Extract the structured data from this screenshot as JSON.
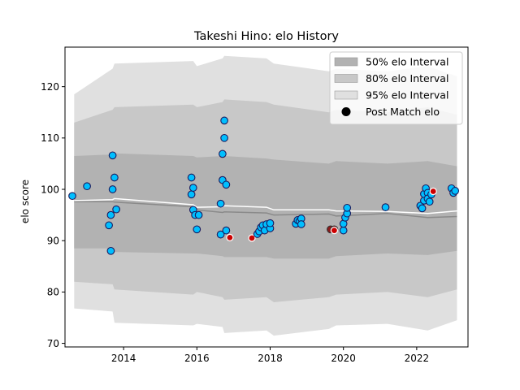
{
  "chart_data": {
    "type": "scatter",
    "title": "Takeshi Hino: elo History",
    "xlabel": "",
    "ylabel": "elo score",
    "xlim": [
      2012.4,
      2023.4
    ],
    "ylim": [
      69.3,
      127.7
    ],
    "xticks": [
      2014,
      2016,
      2018,
      2020,
      2022
    ],
    "yticks": [
      70,
      80,
      90,
      100,
      110,
      120
    ],
    "grid": false,
    "legend_position": "top-right",
    "legend": [
      {
        "label": "50% elo Interval",
        "kind": "band",
        "color": "#b2b2b2"
      },
      {
        "label": "80% elo Interval",
        "kind": "band",
        "color": "#c8c8c8"
      },
      {
        "label": "95% elo Interval",
        "kind": "band",
        "color": "#e0e0e0"
      },
      {
        "label": "Post Match elo",
        "kind": "marker",
        "color": "#000000"
      }
    ],
    "colors": {
      "band50": "#b2b2b2",
      "band80": "#c8c8c8",
      "band95": "#e0e0e0",
      "mean_line": "#ffffff",
      "median_line": "#8a8a8a",
      "point_fill": "#00bfff",
      "point_edge": "#1a1a5e",
      "loss_fill": "#cc0000",
      "loss_edge": "#ffffff",
      "dark_fill": "#8b1a1a"
    },
    "bands": {
      "x": [
        2012.65,
        2013.7,
        2013.75,
        2015.9,
        2016.0,
        2016.7,
        2016.75,
        2017.9,
        2018.1,
        2019.6,
        2019.8,
        2021.2,
        2022.3,
        2023.1
      ],
      "band95_lo": [
        76.8,
        76.2,
        74.0,
        73.5,
        73.8,
        73.2,
        72.0,
        72.5,
        71.5,
        72.8,
        73.5,
        73.8,
        72.5,
        74.5
      ],
      "band95_hi": [
        118.5,
        123.5,
        124.5,
        125.0,
        124.0,
        125.5,
        126.0,
        125.5,
        124.5,
        123.0,
        123.5,
        123.0,
        124.0,
        122.0
      ],
      "band80_lo": [
        82.0,
        81.5,
        80.5,
        79.5,
        80.0,
        79.0,
        78.5,
        79.0,
        78.0,
        79.0,
        79.5,
        80.0,
        79.0,
        80.5
      ],
      "band80_hi": [
        113.0,
        115.5,
        116.0,
        116.5,
        116.0,
        117.0,
        117.5,
        117.0,
        116.5,
        115.0,
        115.5,
        115.0,
        116.0,
        114.5
      ],
      "band50_lo": [
        88.5,
        88.5,
        87.8,
        87.5,
        87.5,
        87.0,
        86.8,
        86.8,
        86.5,
        86.5,
        87.0,
        87.5,
        87.2,
        88.0
      ],
      "band50_hi": [
        106.5,
        106.8,
        107.0,
        106.5,
        106.2,
        106.5,
        106.5,
        106.0,
        105.8,
        105.0,
        105.5,
        105.0,
        105.5,
        104.5
      ],
      "mean": [
        97.8,
        98.0,
        98.2,
        97.0,
        96.5,
        96.6,
        96.8,
        96.5,
        96.0,
        96.0,
        95.8,
        95.7,
        95.3,
        95.8
      ],
      "median": [
        97.6,
        97.6,
        97.5,
        96.6,
        96.0,
        95.5,
        95.6,
        95.4,
        95.0,
        95.2,
        94.8,
        95.3,
        94.5,
        94.7
      ]
    },
    "points": [
      {
        "x": 2012.6,
        "y": 98.7,
        "kind": "normal"
      },
      {
        "x": 2013.0,
        "y": 100.6,
        "kind": "normal"
      },
      {
        "x": 2013.6,
        "y": 93.0,
        "kind": "normal"
      },
      {
        "x": 2013.65,
        "y": 95.0,
        "kind": "normal"
      },
      {
        "x": 2013.65,
        "y": 88.0,
        "kind": "normal"
      },
      {
        "x": 2013.7,
        "y": 100.0,
        "kind": "normal"
      },
      {
        "x": 2013.7,
        "y": 106.6,
        "kind": "normal"
      },
      {
        "x": 2013.75,
        "y": 102.3,
        "kind": "normal"
      },
      {
        "x": 2013.8,
        "y": 96.1,
        "kind": "normal"
      },
      {
        "x": 2015.85,
        "y": 102.3,
        "kind": "normal"
      },
      {
        "x": 2015.85,
        "y": 99.0,
        "kind": "normal"
      },
      {
        "x": 2015.9,
        "y": 100.3,
        "kind": "normal"
      },
      {
        "x": 2015.9,
        "y": 96.0,
        "kind": "normal"
      },
      {
        "x": 2015.95,
        "y": 95.0,
        "kind": "normal"
      },
      {
        "x": 2016.0,
        "y": 92.2,
        "kind": "normal"
      },
      {
        "x": 2016.05,
        "y": 95.0,
        "kind": "normal"
      },
      {
        "x": 2016.65,
        "y": 97.2,
        "kind": "normal"
      },
      {
        "x": 2016.65,
        "y": 91.2,
        "kind": "normal"
      },
      {
        "x": 2016.7,
        "y": 106.9,
        "kind": "normal"
      },
      {
        "x": 2016.7,
        "y": 101.8,
        "kind": "normal"
      },
      {
        "x": 2016.75,
        "y": 113.4,
        "kind": "normal"
      },
      {
        "x": 2016.75,
        "y": 110.0,
        "kind": "normal"
      },
      {
        "x": 2016.8,
        "y": 100.9,
        "kind": "normal"
      },
      {
        "x": 2016.8,
        "y": 92.0,
        "kind": "normal"
      },
      {
        "x": 2016.9,
        "y": 90.6,
        "kind": "loss"
      },
      {
        "x": 2017.5,
        "y": 90.5,
        "kind": "loss"
      },
      {
        "x": 2017.65,
        "y": 91.3,
        "kind": "normal"
      },
      {
        "x": 2017.7,
        "y": 91.8,
        "kind": "normal"
      },
      {
        "x": 2017.75,
        "y": 92.6,
        "kind": "normal"
      },
      {
        "x": 2017.8,
        "y": 93.0,
        "kind": "normal"
      },
      {
        "x": 2017.85,
        "y": 92.0,
        "kind": "normal"
      },
      {
        "x": 2017.9,
        "y": 93.2,
        "kind": "normal"
      },
      {
        "x": 2018.0,
        "y": 92.4,
        "kind": "normal"
      },
      {
        "x": 2018.0,
        "y": 93.4,
        "kind": "normal"
      },
      {
        "x": 2018.7,
        "y": 93.3,
        "kind": "normal"
      },
      {
        "x": 2018.75,
        "y": 94.0,
        "kind": "normal"
      },
      {
        "x": 2018.8,
        "y": 93.8,
        "kind": "normal"
      },
      {
        "x": 2018.85,
        "y": 94.3,
        "kind": "normal"
      },
      {
        "x": 2018.85,
        "y": 93.2,
        "kind": "normal"
      },
      {
        "x": 2019.65,
        "y": 92.2,
        "kind": "dark"
      },
      {
        "x": 2019.75,
        "y": 92.2,
        "kind": "dark"
      },
      {
        "x": 2019.75,
        "y": 92.0,
        "kind": "loss"
      },
      {
        "x": 2020.0,
        "y": 92.0,
        "kind": "normal"
      },
      {
        "x": 2020.0,
        "y": 93.3,
        "kind": "normal"
      },
      {
        "x": 2020.05,
        "y": 94.5,
        "kind": "normal"
      },
      {
        "x": 2020.1,
        "y": 95.3,
        "kind": "normal"
      },
      {
        "x": 2020.1,
        "y": 96.4,
        "kind": "normal"
      },
      {
        "x": 2021.15,
        "y": 96.5,
        "kind": "normal"
      },
      {
        "x": 2022.1,
        "y": 96.8,
        "kind": "normal"
      },
      {
        "x": 2022.15,
        "y": 96.3,
        "kind": "normal"
      },
      {
        "x": 2022.2,
        "y": 97.8,
        "kind": "normal"
      },
      {
        "x": 2022.2,
        "y": 99.1,
        "kind": "normal"
      },
      {
        "x": 2022.25,
        "y": 100.2,
        "kind": "normal"
      },
      {
        "x": 2022.3,
        "y": 99.3,
        "kind": "normal"
      },
      {
        "x": 2022.3,
        "y": 98.2,
        "kind": "normal"
      },
      {
        "x": 2022.35,
        "y": 97.6,
        "kind": "normal"
      },
      {
        "x": 2022.4,
        "y": 99.0,
        "kind": "normal"
      },
      {
        "x": 2022.45,
        "y": 99.6,
        "kind": "loss"
      },
      {
        "x": 2022.95,
        "y": 100.2,
        "kind": "normal"
      },
      {
        "x": 2023.0,
        "y": 99.3,
        "kind": "normal"
      },
      {
        "x": 2023.05,
        "y": 99.7,
        "kind": "normal"
      }
    ]
  }
}
